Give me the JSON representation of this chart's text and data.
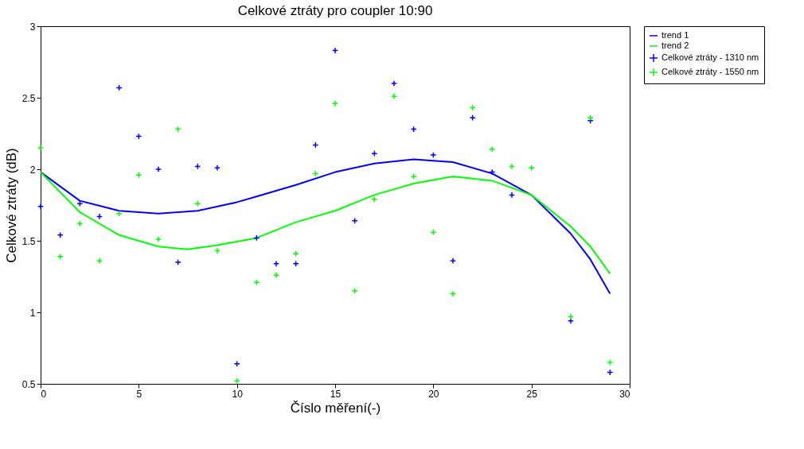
{
  "chart_data": {
    "type": "scatter",
    "title": "Celkové ztráty pro coupler 10:90",
    "xlabel": "Číslo měření(-)",
    "ylabel": "Celkové ztráty (dB)",
    "xlim": [
      0,
      30
    ],
    "ylim": [
      0.5,
      3
    ],
    "xticks": [
      0,
      5,
      10,
      15,
      20,
      25,
      30
    ],
    "yticks": [
      0.5,
      1,
      1.5,
      2,
      2.5,
      3
    ],
    "grid": false,
    "legend": "right",
    "series": [
      {
        "name": "trend 1",
        "type": "line",
        "color": "#0000ff",
        "line_style": "solid",
        "x": [
          0,
          2,
          4,
          6,
          8,
          10,
          11,
          13,
          15,
          17,
          19,
          21,
          23,
          25,
          27,
          28,
          29
        ],
        "values": [
          1.98,
          1.78,
          1.71,
          1.69,
          1.71,
          1.77,
          1.81,
          1.89,
          1.98,
          2.04,
          2.07,
          2.05,
          1.97,
          1.82,
          1.55,
          1.37,
          1.13
        ]
      },
      {
        "name": "trend 2",
        "type": "line",
        "color": "#00ff00",
        "line_style": "solid",
        "x": [
          0,
          2,
          4,
          6,
          7.5,
          9,
          11,
          13,
          15,
          17,
          19,
          21,
          23,
          25,
          27,
          28,
          29
        ],
        "values": [
          1.98,
          1.7,
          1.54,
          1.46,
          1.44,
          1.47,
          1.52,
          1.63,
          1.71,
          1.82,
          1.9,
          1.95,
          1.92,
          1.82,
          1.6,
          1.46,
          1.27
        ]
      },
      {
        "name": "Celkové ztráty - 1310 nm",
        "marker": "cross",
        "color": "#0000ff",
        "x": [
          0,
          1,
          2,
          3,
          4,
          5,
          6,
          7,
          8,
          9,
          10,
          11,
          12,
          13,
          14,
          15,
          16,
          17,
          18,
          19,
          20,
          21,
          22,
          23,
          24,
          27,
          28,
          29
        ],
        "values": [
          1.74,
          1.54,
          1.76,
          1.67,
          2.57,
          2.23,
          2.0,
          1.35,
          2.02,
          2.01,
          0.64,
          1.52,
          1.34,
          1.34,
          2.17,
          2.83,
          1.64,
          2.11,
          2.6,
          2.28,
          2.1,
          1.36,
          2.36,
          1.98,
          1.82,
          0.94,
          2.34,
          0.58
        ]
      },
      {
        "name": "Celkové ztráty - 1550 nm",
        "marker": "cross",
        "color": "#00ff00",
        "x": [
          0,
          1,
          2,
          3,
          4,
          5,
          6,
          7,
          8,
          9,
          10,
          11,
          12,
          13,
          14,
          15,
          16,
          17,
          18,
          19,
          20,
          21,
          22,
          23,
          24,
          25,
          27,
          28,
          29
        ],
        "values": [
          2.15,
          1.39,
          1.62,
          1.36,
          1.69,
          1.96,
          1.51,
          2.28,
          1.76,
          1.43,
          0.52,
          1.21,
          1.26,
          1.41,
          1.97,
          2.46,
          1.15,
          1.79,
          2.51,
          1.95,
          1.56,
          1.13,
          2.43,
          2.14,
          2.02,
          2.01,
          0.97,
          2.36,
          0.65
        ]
      }
    ]
  }
}
